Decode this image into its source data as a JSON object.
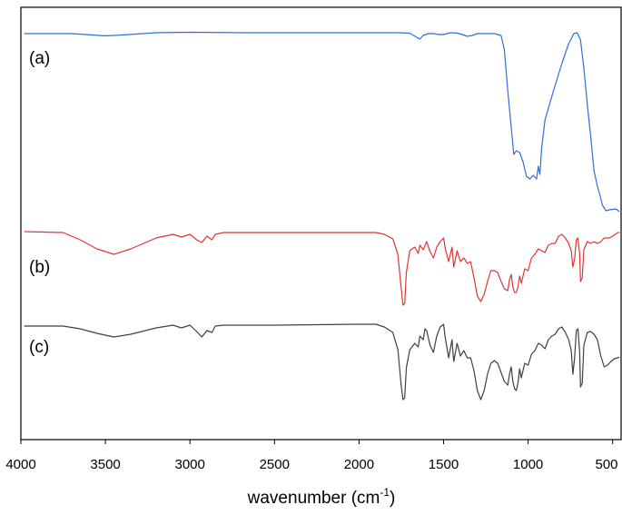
{
  "chart_data": {
    "type": "line",
    "xlabel": "wavenumber (cm",
    "xlabel_sup": "-1",
    "xlabel_close": ")",
    "ylabel": "",
    "xlim": [
      4000,
      450
    ],
    "x_reversed": true,
    "y_ticks_shown": false,
    "xticks": [
      4000,
      3500,
      3000,
      2500,
      2000,
      1500,
      1000,
      500
    ],
    "xtick_labels": [
      "4000",
      "3500",
      "3000",
      "2500",
      "2000",
      "1500",
      "1000",
      "500"
    ],
    "grid": false,
    "annotations": [
      "(a)",
      "(b)",
      "(c)"
    ],
    "series": [
      {
        "color": "#2f6fd6",
        "label": "(a)",
        "points": [
          [
            3980,
            37
          ],
          [
            3700,
            37
          ],
          [
            3500,
            39.5
          ],
          [
            3400,
            38.5
          ],
          [
            3200,
            36
          ],
          [
            3000,
            35.5
          ],
          [
            2700,
            36
          ],
          [
            2300,
            36
          ],
          [
            2000,
            36
          ],
          [
            1850,
            36
          ],
          [
            1770,
            36
          ],
          [
            1700,
            36.5
          ],
          [
            1660,
            41
          ],
          [
            1640,
            43
          ],
          [
            1620,
            39
          ],
          [
            1590,
            37
          ],
          [
            1560,
            37
          ],
          [
            1530,
            38
          ],
          [
            1500,
            38
          ],
          [
            1460,
            36
          ],
          [
            1420,
            36.5
          ],
          [
            1390,
            38
          ],
          [
            1360,
            40
          ],
          [
            1330,
            39
          ],
          [
            1300,
            37
          ],
          [
            1240,
            37
          ],
          [
            1200,
            37
          ],
          [
            1160,
            39
          ],
          [
            1140,
            55
          ],
          [
            1120,
            100
          ],
          [
            1100,
            140
          ],
          [
            1085,
            170
          ],
          [
            1070,
            166
          ],
          [
            1050,
            168
          ],
          [
            1030,
            178
          ],
          [
            1010,
            194
          ],
          [
            990,
            197
          ],
          [
            970,
            193
          ],
          [
            950,
            197
          ],
          [
            940,
            183
          ],
          [
            930,
            192
          ],
          [
            920,
            163
          ],
          [
            900,
            132
          ],
          [
            850,
            100
          ],
          [
            800,
            70
          ],
          [
            760,
            48
          ],
          [
            730,
            37
          ],
          [
            710,
            36
          ],
          [
            690,
            44
          ],
          [
            670,
            75
          ],
          [
            650,
            115
          ],
          [
            630,
            150
          ],
          [
            610,
            188
          ],
          [
            590,
            205
          ],
          [
            575,
            215
          ],
          [
            560,
            226
          ],
          [
            540,
            232
          ],
          [
            520,
            231
          ],
          [
            480,
            230
          ],
          [
            460,
            233
          ]
        ]
      },
      {
        "color": "#e03535",
        "label": "(b)",
        "points": [
          [
            3980,
            255
          ],
          [
            3750,
            256
          ],
          [
            3650,
            264
          ],
          [
            3550,
            274
          ],
          [
            3450,
            280
          ],
          [
            3350,
            274
          ],
          [
            3200,
            262
          ],
          [
            3100,
            258
          ],
          [
            3050,
            261
          ],
          [
            3000,
            258
          ],
          [
            2960,
            264
          ],
          [
            2930,
            267
          ],
          [
            2900,
            260
          ],
          [
            2870,
            264
          ],
          [
            2850,
            258
          ],
          [
            2800,
            256
          ],
          [
            2500,
            256
          ],
          [
            2000,
            256
          ],
          [
            1900,
            256
          ],
          [
            1850,
            258
          ],
          [
            1800,
            263
          ],
          [
            1770,
            280
          ],
          [
            1750,
            318
          ],
          [
            1740,
            336
          ],
          [
            1730,
            334
          ],
          [
            1720,
            300
          ],
          [
            1700,
            276
          ],
          [
            1670,
            272
          ],
          [
            1650,
            279
          ],
          [
            1640,
            270
          ],
          [
            1620,
            275
          ],
          [
            1600,
            266
          ],
          [
            1580,
            277
          ],
          [
            1560,
            284
          ],
          [
            1540,
            272
          ],
          [
            1520,
            266
          ],
          [
            1500,
            262
          ],
          [
            1490,
            274
          ],
          [
            1470,
            288
          ],
          [
            1450,
            272
          ],
          [
            1440,
            294
          ],
          [
            1420,
            276
          ],
          [
            1400,
            288
          ],
          [
            1380,
            284
          ],
          [
            1360,
            290
          ],
          [
            1340,
            288
          ],
          [
            1320,
            306
          ],
          [
            1300,
            326
          ],
          [
            1280,
            332
          ],
          [
            1260,
            324
          ],
          [
            1240,
            310
          ],
          [
            1220,
            298
          ],
          [
            1200,
            298
          ],
          [
            1180,
            300
          ],
          [
            1160,
            310
          ],
          [
            1140,
            318
          ],
          [
            1120,
            320
          ],
          [
            1110,
            308
          ],
          [
            1100,
            302
          ],
          [
            1090,
            316
          ],
          [
            1080,
            322
          ],
          [
            1070,
            322
          ],
          [
            1060,
            316
          ],
          [
            1050,
            304
          ],
          [
            1040,
            312
          ],
          [
            1020,
            296
          ],
          [
            1000,
            298
          ],
          [
            980,
            284
          ],
          [
            960,
            280
          ],
          [
            940,
            274
          ],
          [
            920,
            276
          ],
          [
            900,
            278
          ],
          [
            880,
            270
          ],
          [
            860,
            268
          ],
          [
            840,
            268
          ],
          [
            820,
            260
          ],
          [
            800,
            258
          ],
          [
            780,
            262
          ],
          [
            760,
            268
          ],
          [
            745,
            276
          ],
          [
            735,
            294
          ],
          [
            725,
            285
          ],
          [
            715,
            264
          ],
          [
            705,
            262
          ],
          [
            695,
            280
          ],
          [
            690,
            310
          ],
          [
            680,
            306
          ],
          [
            670,
            275
          ],
          [
            650,
            266
          ],
          [
            630,
            268
          ],
          [
            610,
            266
          ],
          [
            590,
            268
          ],
          [
            570,
            266
          ],
          [
            550,
            262
          ],
          [
            520,
            262
          ],
          [
            500,
            260
          ],
          [
            470,
            256
          ],
          [
            460,
            256
          ]
        ]
      },
      {
        "color": "#404040",
        "label": "(c)",
        "points": [
          [
            3980,
            359
          ],
          [
            3750,
            359
          ],
          [
            3650,
            362
          ],
          [
            3550,
            367
          ],
          [
            3450,
            371
          ],
          [
            3350,
            368
          ],
          [
            3200,
            361
          ],
          [
            3100,
            358
          ],
          [
            3050,
            361
          ],
          [
            3000,
            358
          ],
          [
            2960,
            365
          ],
          [
            2930,
            371
          ],
          [
            2900,
            364
          ],
          [
            2870,
            366
          ],
          [
            2850,
            359
          ],
          [
            2800,
            358
          ],
          [
            2500,
            358
          ],
          [
            2000,
            357
          ],
          [
            1900,
            357
          ],
          [
            1850,
            360
          ],
          [
            1800,
            366
          ],
          [
            1770,
            385
          ],
          [
            1750,
            425
          ],
          [
            1740,
            440
          ],
          [
            1730,
            438
          ],
          [
            1720,
            405
          ],
          [
            1700,
            385
          ],
          [
            1670,
            378
          ],
          [
            1650,
            382
          ],
          [
            1640,
            370
          ],
          [
            1620,
            374
          ],
          [
            1610,
            362
          ],
          [
            1600,
            364
          ],
          [
            1580,
            380
          ],
          [
            1560,
            388
          ],
          [
            1540,
            370
          ],
          [
            1520,
            360
          ],
          [
            1500,
            357
          ],
          [
            1490,
            372
          ],
          [
            1470,
            394
          ],
          [
            1450,
            374
          ],
          [
            1440,
            398
          ],
          [
            1420,
            378
          ],
          [
            1400,
            392
          ],
          [
            1380,
            386
          ],
          [
            1360,
            394
          ],
          [
            1340,
            394
          ],
          [
            1320,
            408
          ],
          [
            1300,
            430
          ],
          [
            1280,
            440
          ],
          [
            1260,
            430
          ],
          [
            1240,
            412
          ],
          [
            1220,
            400
          ],
          [
            1200,
            397
          ],
          [
            1180,
            400
          ],
          [
            1160,
            410
          ],
          [
            1140,
            420
          ],
          [
            1120,
            424
          ],
          [
            1110,
            412
          ],
          [
            1100,
            404
          ],
          [
            1090,
            420
          ],
          [
            1080,
            428
          ],
          [
            1070,
            430
          ],
          [
            1060,
            422
          ],
          [
            1050,
            406
          ],
          [
            1040,
            416
          ],
          [
            1020,
            400
          ],
          [
            1000,
            402
          ],
          [
            980,
            390
          ],
          [
            960,
            386
          ],
          [
            940,
            378
          ],
          [
            920,
            380
          ],
          [
            900,
            384
          ],
          [
            880,
            374
          ],
          [
            860,
            370
          ],
          [
            840,
            368
          ],
          [
            820,
            362
          ],
          [
            800,
            360
          ],
          [
            780,
            366
          ],
          [
            760,
            374
          ],
          [
            745,
            386
          ],
          [
            735,
            412
          ],
          [
            725,
            394
          ],
          [
            715,
            364
          ],
          [
            705,
            362
          ],
          [
            695,
            388
          ],
          [
            690,
            426
          ],
          [
            680,
            422
          ],
          [
            670,
            380
          ],
          [
            650,
            366
          ],
          [
            630,
            365
          ],
          [
            610,
            368
          ],
          [
            590,
            374
          ],
          [
            570,
            392
          ],
          [
            550,
            404
          ],
          [
            530,
            402
          ],
          [
            510,
            398
          ],
          [
            490,
            395
          ],
          [
            470,
            394
          ],
          [
            460,
            393
          ]
        ]
      }
    ]
  }
}
